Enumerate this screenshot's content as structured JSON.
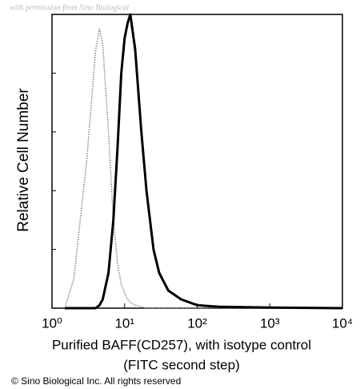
{
  "chart_data": {
    "type": "line",
    "watermark": "with permission from Sino Biological",
    "ylabel": "Relative Cell Number",
    "xlabel": [
      "Purified BAFF(CD257), with isotype control",
      "(FITC second step)"
    ],
    "footnote": "© Sino Biological Inc. All rights reserved",
    "xscale": "log",
    "xlim": [
      1,
      10000
    ],
    "xticks": [
      {
        "value": 1,
        "label": "10⁰"
      },
      {
        "value": 10,
        "label": "10¹"
      },
      {
        "value": 100,
        "label": "10²"
      },
      {
        "value": 1000,
        "label": "10³"
      },
      {
        "value": 10000,
        "label": "10⁴"
      }
    ],
    "ylim": [
      0,
      100
    ],
    "yticks": [
      0,
      20,
      40,
      60,
      80,
      100
    ],
    "x": [
      1.5,
      2,
      3,
      4,
      4.5,
      5,
      6,
      7,
      8,
      9,
      10,
      11,
      12,
      14,
      17,
      20,
      25,
      30,
      40,
      60,
      100,
      200,
      1000,
      10000
    ],
    "series": [
      {
        "color": "#8a8a8a",
        "style": "dotted",
        "values": [
          0,
          10,
          50,
          88,
          95,
          90,
          60,
          30,
          15,
          8,
          5,
          3,
          2,
          1,
          0.5,
          0,
          0,
          0,
          0,
          0,
          0,
          0,
          0,
          0
        ]
      },
      {
        "color": "#000000",
        "style": "solid",
        "values": [
          0,
          0,
          0,
          0,
          1,
          3,
          12,
          30,
          55,
          80,
          92,
          97,
          100,
          88,
          60,
          40,
          20,
          12,
          6,
          3,
          1,
          0.5,
          0.2,
          0
        ]
      }
    ]
  }
}
